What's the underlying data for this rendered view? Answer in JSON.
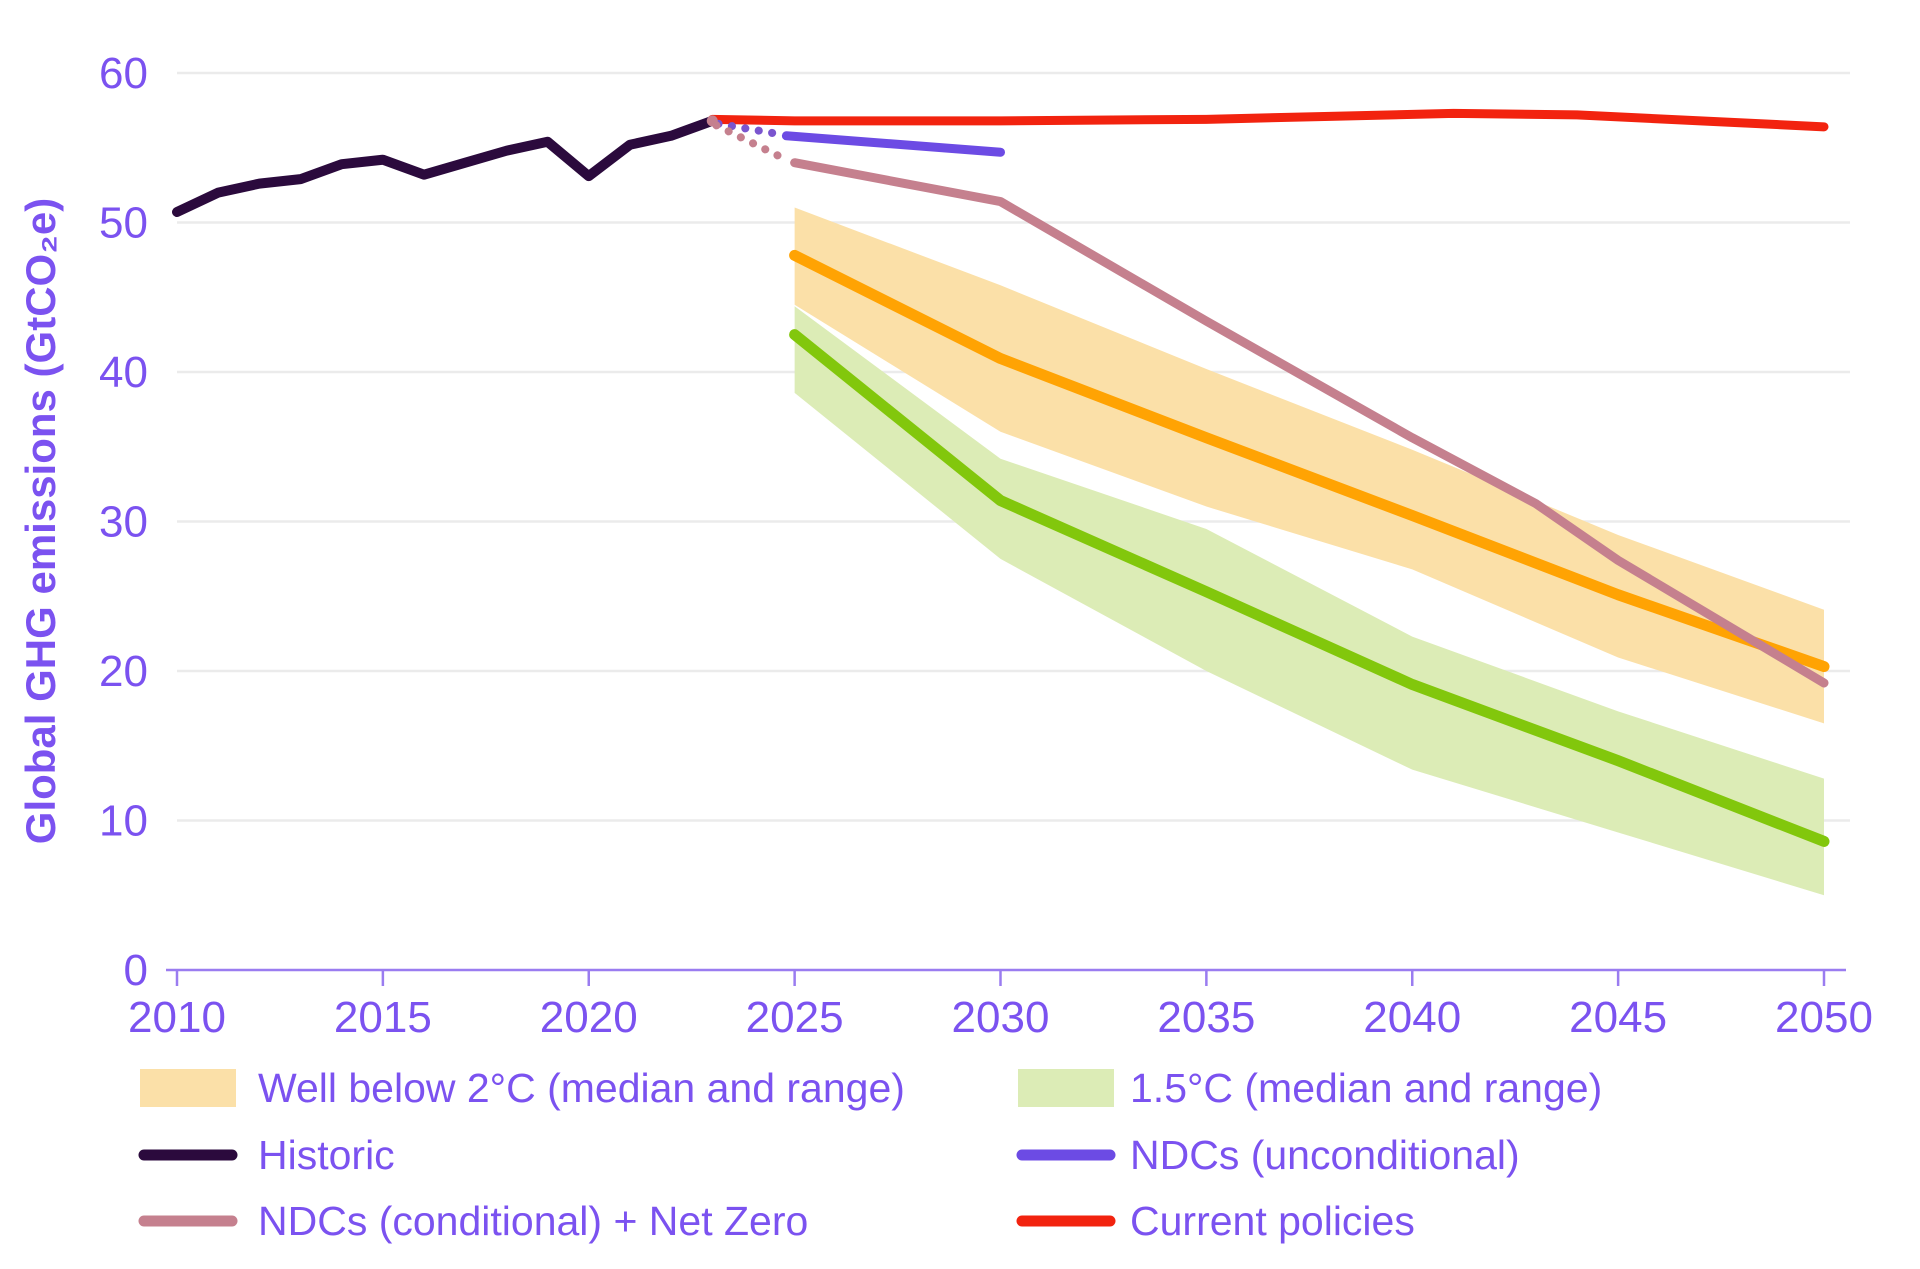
{
  "chart_data": {
    "type": "line",
    "title": "",
    "ylabel": "Global GHG emissions (GtCO₂e)",
    "xlabel": "",
    "xlim": [
      2010,
      2050
    ],
    "ylim": [
      0,
      60
    ],
    "x_ticks": [
      "2010",
      "2015",
      "2020",
      "2025",
      "2030",
      "2035",
      "2040",
      "2045",
      "2050"
    ],
    "x_tick_years": [
      2010,
      2015,
      2020,
      2025,
      2030,
      2035,
      2040,
      2045,
      2050
    ],
    "y_ticks": [
      "0",
      "10",
      "20",
      "30",
      "40",
      "50",
      "60"
    ],
    "y_tick_values": [
      0,
      10,
      20,
      30,
      40,
      50,
      60
    ],
    "grid": "horizontal",
    "legend_position": "bottom",
    "colors": {
      "historic": "#2b0a3d",
      "ndc_unconditional": "#6c4be4",
      "ndc_conditional": "#c5808e",
      "current_policies": "#f2230f",
      "wb2c_median": "#ffa303",
      "wb2c_band": "#fbe0a8",
      "c15_median": "#82c70c",
      "c15_band": "#dcecb6",
      "axis": "#9a7cf0",
      "text": "#7b52f0",
      "gridline": "#ebebeb"
    },
    "bands": [
      {
        "name": "Well below 2°C range",
        "color": "#fbe0a8",
        "x": [
          2025,
          2030,
          2035,
          2040,
          2045,
          2050
        ],
        "upper": [
          51.0,
          45.8,
          40.2,
          34.8,
          29.1,
          24.1
        ],
        "lower": [
          44.5,
          36.0,
          31.0,
          26.8,
          20.9,
          16.5
        ]
      },
      {
        "name": "1.5°C range",
        "color": "#dcecb6",
        "x": [
          2025,
          2030,
          2035,
          2040,
          2045,
          2050
        ],
        "upper": [
          44.4,
          34.2,
          29.5,
          22.3,
          17.3,
          12.8
        ],
        "lower": [
          38.6,
          27.5,
          20.0,
          13.4,
          9.2,
          5.0
        ]
      }
    ],
    "series": [
      {
        "name": "1.5°C (median)",
        "key": "c15_median",
        "color": "#82c70c",
        "width": 11,
        "x": [
          2025,
          2030,
          2035,
          2040,
          2045,
          2050
        ],
        "y": [
          42.5,
          31.4,
          25.3,
          19.1,
          14.0,
          8.6
        ]
      },
      {
        "name": "Well below 2°C (median)",
        "key": "wb2c_median",
        "color": "#ffa303",
        "width": 11,
        "x": [
          2025,
          2030,
          2035,
          2040,
          2045,
          2050
        ],
        "y": [
          47.8,
          40.9,
          35.6,
          30.4,
          25.1,
          20.3
        ]
      },
      {
        "name": "NDCs (conditional) + Net Zero",
        "key": "ndc_conditional",
        "color": "#c5808e",
        "width": 9,
        "x": [
          2025,
          2030,
          2035,
          2040,
          2043,
          2045,
          2050
        ],
        "y": [
          54.0,
          51.4,
          43.4,
          35.6,
          31.2,
          27.4,
          19.2
        ]
      },
      {
        "name": "Current policies",
        "key": "current_policies",
        "color": "#f2230f",
        "width": 9,
        "x": [
          2023,
          2025,
          2030,
          2035,
          2038,
          2041,
          2044,
          2047,
          2050
        ],
        "y": [
          56.9,
          56.8,
          56.8,
          56.9,
          57.1,
          57.3,
          57.2,
          56.8,
          56.4
        ]
      },
      {
        "name": "NDCs (unconditional)",
        "key": "ndc_unconditional",
        "color": "#6c4be4",
        "width": 9,
        "x": [
          2024.8,
          2030
        ],
        "y": [
          55.8,
          54.7
        ]
      },
      {
        "name": "Historic",
        "key": "historic",
        "color": "#2b0a3d",
        "width": 10,
        "x": [
          2010,
          2011,
          2012,
          2013,
          2014,
          2015,
          2016,
          2017,
          2018,
          2019,
          2020,
          2021,
          2022,
          2023
        ],
        "y": [
          50.7,
          52.0,
          52.6,
          52.9,
          53.9,
          54.2,
          53.2,
          54.0,
          54.8,
          55.4,
          53.1,
          55.2,
          55.8,
          56.8
        ]
      }
    ],
    "dotted_connectors": [
      {
        "name": "historic to NDCs (unconditional)",
        "color": "#7a55cf",
        "x": [
          2023.15,
          2024.65
        ],
        "y": [
          56.6,
          55.9
        ]
      },
      {
        "name": "historic to NDCs (conditional)",
        "color": "#c5808e",
        "x": [
          2023.1,
          2024.8
        ],
        "y": [
          56.5,
          54.2
        ]
      }
    ],
    "junction_dot": {
      "x": 2023,
      "y": 56.8,
      "color": "#c5808e"
    }
  },
  "legend": {
    "items": [
      {
        "label": "Well below 2°C (median and range)",
        "swatch": "band",
        "color": "#fbe0a8"
      },
      {
        "label": "1.5°C (median and range)",
        "swatch": "band",
        "color": "#dcecb6"
      },
      {
        "label": "Historic",
        "swatch": "line",
        "color": "#2b0a3d"
      },
      {
        "label": "NDCs (unconditional)",
        "swatch": "line",
        "color": "#6c4be4"
      },
      {
        "label": "NDCs (conditional) + Net Zero",
        "swatch": "line",
        "color": "#c5808e"
      },
      {
        "label": "Current policies",
        "swatch": "line",
        "color": "#f2230f"
      }
    ]
  }
}
